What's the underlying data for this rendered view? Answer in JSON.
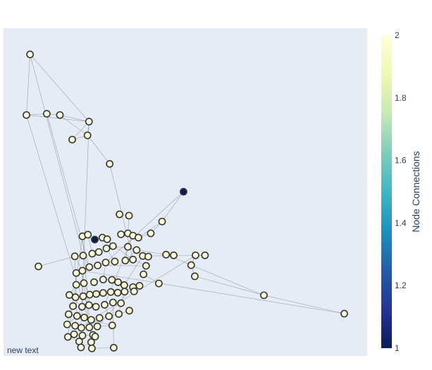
{
  "chart_data": {
    "type": "scatter",
    "title": "",
    "xlabel": "",
    "ylabel": "",
    "xlim": [
      0,
      100
    ],
    "ylim": [
      0,
      100
    ],
    "grid": false,
    "annotation": "new text",
    "colorbar": {
      "title": "Node Connections",
      "range": [
        1,
        2
      ],
      "ticks": [
        "1",
        "1.2",
        "1.4",
        "1.6",
        "1.8",
        "2"
      ],
      "colorscale": [
        "#081d58",
        "#253494",
        "#225ea8",
        "#1d91c0",
        "#41b6c4",
        "#7fcdbb",
        "#c7e9b4",
        "#edf8b1",
        "#ffffd9"
      ]
    },
    "node_colors": {
      "high": "#ffffd9",
      "low": "#081d58"
    },
    "nodes": [
      {
        "x": 7.3,
        "y": 92.0,
        "c": 2
      },
      {
        "x": 6.3,
        "y": 73.5,
        "c": 2
      },
      {
        "x": 11.9,
        "y": 73.9,
        "c": 2
      },
      {
        "x": 15.5,
        "y": 73.5,
        "c": 2
      },
      {
        "x": 23.5,
        "y": 71.5,
        "c": 2
      },
      {
        "x": 23.1,
        "y": 67.3,
        "c": 2
      },
      {
        "x": 18.9,
        "y": 66.0,
        "c": 2
      },
      {
        "x": 29.2,
        "y": 58.6,
        "c": 2
      },
      {
        "x": 49.5,
        "y": 50.1,
        "c": 1
      },
      {
        "x": 31.9,
        "y": 43.2,
        "c": 2
      },
      {
        "x": 34.5,
        "y": 42.8,
        "c": 2
      },
      {
        "x": 43.6,
        "y": 41.0,
        "c": 2
      },
      {
        "x": 40.5,
        "y": 37.4,
        "c": 2
      },
      {
        "x": 21.7,
        "y": 36.5,
        "c": 2
      },
      {
        "x": 23.2,
        "y": 37.0,
        "c": 2
      },
      {
        "x": 25.1,
        "y": 35.5,
        "c": 1
      },
      {
        "x": 27.2,
        "y": 36.1,
        "c": 2
      },
      {
        "x": 28.5,
        "y": 35.6,
        "c": 2
      },
      {
        "x": 32.3,
        "y": 37.1,
        "c": 2
      },
      {
        "x": 34.2,
        "y": 37.4,
        "c": 2
      },
      {
        "x": 35.6,
        "y": 36.7,
        "c": 2
      },
      {
        "x": 37.1,
        "y": 36.1,
        "c": 2
      },
      {
        "x": 9.6,
        "y": 27.3,
        "c": 2
      },
      {
        "x": 19.6,
        "y": 30.4,
        "c": 2
      },
      {
        "x": 21.9,
        "y": 30.6,
        "c": 2
      },
      {
        "x": 24.4,
        "y": 31.2,
        "c": 2
      },
      {
        "x": 26.2,
        "y": 31.7,
        "c": 2
      },
      {
        "x": 28.3,
        "y": 32.8,
        "c": 2
      },
      {
        "x": 30.1,
        "y": 33.5,
        "c": 2
      },
      {
        "x": 34.2,
        "y": 33.3,
        "c": 2
      },
      {
        "x": 36.6,
        "y": 32.3,
        "c": 2
      },
      {
        "x": 38.3,
        "y": 30.5,
        "c": 2
      },
      {
        "x": 39.8,
        "y": 30.3,
        "c": 2
      },
      {
        "x": 44.7,
        "y": 30.9,
        "c": 2
      },
      {
        "x": 46.8,
        "y": 30.7,
        "c": 2
      },
      {
        "x": 52.8,
        "y": 30.7,
        "c": 2
      },
      {
        "x": 55.4,
        "y": 30.7,
        "c": 2
      },
      {
        "x": 51.6,
        "y": 27.7,
        "c": 2
      },
      {
        "x": 20.0,
        "y": 25.3,
        "c": 2
      },
      {
        "x": 21.7,
        "y": 26.0,
        "c": 2
      },
      {
        "x": 23.6,
        "y": 27.1,
        "c": 2
      },
      {
        "x": 25.9,
        "y": 27.6,
        "c": 2
      },
      {
        "x": 28.1,
        "y": 28.5,
        "c": 2
      },
      {
        "x": 30.6,
        "y": 28.8,
        "c": 2
      },
      {
        "x": 33.5,
        "y": 29.1,
        "c": 2
      },
      {
        "x": 35.6,
        "y": 29.4,
        "c": 2
      },
      {
        "x": 39.2,
        "y": 27.5,
        "c": 2
      },
      {
        "x": 20.0,
        "y": 21.7,
        "c": 2
      },
      {
        "x": 22.1,
        "y": 22.2,
        "c": 2
      },
      {
        "x": 24.9,
        "y": 22.5,
        "c": 2
      },
      {
        "x": 27.4,
        "y": 23.3,
        "c": 2
      },
      {
        "x": 29.8,
        "y": 23.2,
        "c": 2
      },
      {
        "x": 31.5,
        "y": 22.5,
        "c": 2
      },
      {
        "x": 33.2,
        "y": 21.6,
        "c": 2
      },
      {
        "x": 35.6,
        "y": 21.0,
        "c": 2
      },
      {
        "x": 37.4,
        "y": 21.4,
        "c": 2
      },
      {
        "x": 42.7,
        "y": 22.1,
        "c": 2
      },
      {
        "x": 18.1,
        "y": 18.6,
        "c": 2
      },
      {
        "x": 19.8,
        "y": 17.9,
        "c": 2
      },
      {
        "x": 21.9,
        "y": 18.2,
        "c": 2
      },
      {
        "x": 23.7,
        "y": 18.7,
        "c": 2
      },
      {
        "x": 25.5,
        "y": 18.9,
        "c": 2
      },
      {
        "x": 27.4,
        "y": 19.2,
        "c": 2
      },
      {
        "x": 29.5,
        "y": 19.5,
        "c": 2
      },
      {
        "x": 31.4,
        "y": 19.3,
        "c": 2
      },
      {
        "x": 33.3,
        "y": 19.6,
        "c": 2
      },
      {
        "x": 35.9,
        "y": 19.7,
        "c": 2
      },
      {
        "x": 19.1,
        "y": 15.2,
        "c": 2
      },
      {
        "x": 21.6,
        "y": 15.0,
        "c": 2
      },
      {
        "x": 23.5,
        "y": 15.5,
        "c": 2
      },
      {
        "x": 25.4,
        "y": 15.0,
        "c": 2
      },
      {
        "x": 27.8,
        "y": 15.6,
        "c": 2
      },
      {
        "x": 30.1,
        "y": 16.3,
        "c": 2
      },
      {
        "x": 32.3,
        "y": 16.1,
        "c": 2
      },
      {
        "x": 17.9,
        "y": 12.7,
        "c": 2
      },
      {
        "x": 20.2,
        "y": 12.2,
        "c": 2
      },
      {
        "x": 22.2,
        "y": 11.7,
        "c": 2
      },
      {
        "x": 24.1,
        "y": 11.0,
        "c": 2
      },
      {
        "x": 26.4,
        "y": 11.6,
        "c": 2
      },
      {
        "x": 29.0,
        "y": 12.1,
        "c": 2
      },
      {
        "x": 31.7,
        "y": 12.8,
        "c": 2
      },
      {
        "x": 17.5,
        "y": 9.6,
        "c": 2
      },
      {
        "x": 19.7,
        "y": 9.2,
        "c": 2
      },
      {
        "x": 21.4,
        "y": 8.6,
        "c": 2
      },
      {
        "x": 23.6,
        "y": 8.7,
        "c": 2
      },
      {
        "x": 25.8,
        "y": 9.0,
        "c": 2
      },
      {
        "x": 29.9,
        "y": 9.3,
        "c": 2
      },
      {
        "x": 19.4,
        "y": 6.6,
        "c": 2
      },
      {
        "x": 21.7,
        "y": 6.2,
        "c": 2
      },
      {
        "x": 24.6,
        "y": 6.4,
        "c": 2
      },
      {
        "x": 17.7,
        "y": 5.8,
        "c": 2
      },
      {
        "x": 20.8,
        "y": 4.4,
        "c": 2
      },
      {
        "x": 24.1,
        "y": 4.2,
        "c": 2
      },
      {
        "x": 21.3,
        "y": 2.6,
        "c": 2
      },
      {
        "x": 24.3,
        "y": 2.3,
        "c": 2
      },
      {
        "x": 25.2,
        "y": 5.9,
        "c": 2
      },
      {
        "x": 30.3,
        "y": 2.5,
        "c": 2
      },
      {
        "x": 34.6,
        "y": 13.8,
        "c": 2
      },
      {
        "x": 71.6,
        "y": 18.5,
        "c": 2
      },
      {
        "x": 93.7,
        "y": 12.9,
        "c": 2
      },
      {
        "x": 52.6,
        "y": 24.3,
        "c": 2
      },
      {
        "x": 38.5,
        "y": 24.9,
        "c": 2
      }
    ]
  }
}
